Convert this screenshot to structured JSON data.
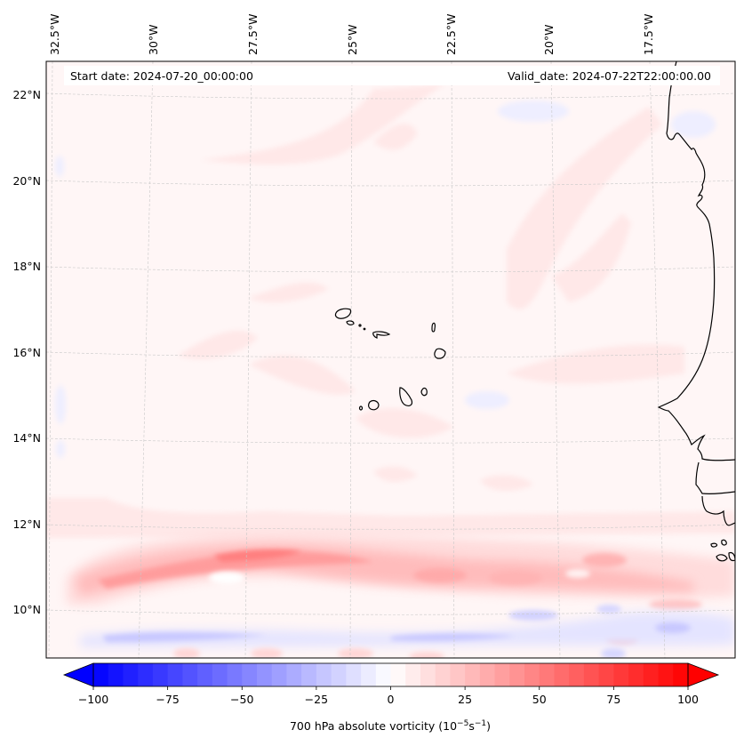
{
  "figure": {
    "start_date_label": "Start date: 2024-07-20_00:00:00",
    "valid_date_label": "Valid_date: 2024-07-22T22:00:00.00"
  },
  "map": {
    "region": "Eastern tropical North Atlantic (Cape Verde Islands and West African coast)",
    "lon_labels": [
      "32.5°W",
      "30°W",
      "27.5°W",
      "25°W",
      "22.5°W",
      "20°W",
      "17.5°W"
    ],
    "lat_labels": [
      "22°N",
      "20°N",
      "18°N",
      "16°N",
      "14°N",
      "12°N",
      "10°N"
    ],
    "gridlines": true,
    "coastline_color": "#000000",
    "features": [
      "Cape Verde Islands",
      "West African coastline (Mauritania, Senegal, Gambia, Guinea-Bissau)"
    ]
  },
  "chart_data": {
    "type": "heatmap",
    "title": "",
    "variable": "700 hPa absolute vorticity",
    "units": "10^-5 s^-1",
    "colorbar": {
      "label_prefix": "700 hPa absolute vorticity (10",
      "label_exp1": "−5",
      "label_mid": "s",
      "label_exp2": "−1",
      "label_suffix": ")",
      "range": [
        -100,
        100
      ],
      "step": 5,
      "extend": "both",
      "colormap": "bwr",
      "ticks": [
        -100,
        -75,
        -50,
        -25,
        0,
        25,
        50,
        75,
        100
      ],
      "tick_labels": [
        "−100",
        "−75",
        "−50",
        "−25",
        "0",
        "25",
        "50",
        "75",
        "100"
      ],
      "min_color": "#0000ff",
      "mid_color": "#ffffff",
      "max_color": "#ff0000"
    },
    "x_range_lon": [
      -32.6,
      -15.2
    ],
    "y_range_lat": [
      8.9,
      22.7
    ],
    "features": [
      {
        "name": "positive vorticity band (African easterly wave / ITCZ)",
        "lat_center": 11.0,
        "lon_range": [
          -31.5,
          -15.5
        ],
        "peak_value": 60,
        "peak_lon": -27.0
      },
      {
        "name": "negative vorticity band",
        "lat_center": 9.3,
        "lon_range": [
          -30.0,
          -16.0
        ],
        "min_value": -25
      },
      {
        "name": "weak positive filaments",
        "lat_range": [
          14,
          22.5
        ],
        "typical_value": 5
      },
      {
        "name": "weak negative patch west edge",
        "lat_range": [
          13.5,
          16.5
        ],
        "lon": -32.2,
        "min_value": -10
      }
    ]
  }
}
